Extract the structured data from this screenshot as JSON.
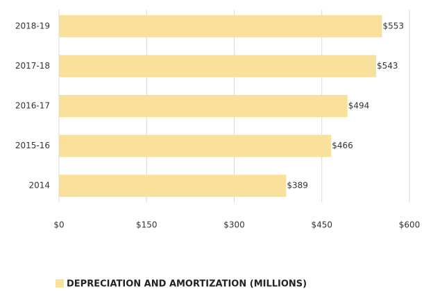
{
  "chart_data": {
    "type": "bar",
    "orientation": "horizontal",
    "categories": [
      "2018-19",
      "2017-18",
      "2016-17",
      "2015-16",
      "2014"
    ],
    "series": [
      {
        "name": "DEPRECIATION AND AMORTIZATION (MILLIONS)",
        "color": "#f9e19c",
        "values": [
          553,
          543,
          494,
          466,
          389
        ],
        "value_labels": [
          "$553",
          "$543",
          "$494",
          "$466",
          "$389"
        ]
      }
    ],
    "xlim": [
      0,
      600
    ],
    "xticks": [
      {
        "value": 0,
        "label": "$0"
      },
      {
        "value": 150,
        "label": "$150"
      },
      {
        "value": 300,
        "label": "$300"
      },
      {
        "value": 450,
        "label": "$450"
      },
      {
        "value": 600,
        "label": "$600"
      }
    ],
    "grid": true,
    "legend": "bottom"
  }
}
